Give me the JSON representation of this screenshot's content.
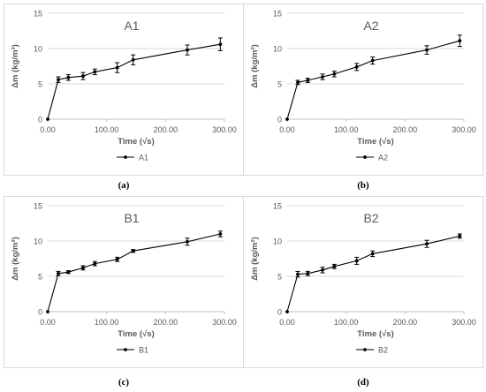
{
  "chart_data": [
    {
      "type": "line",
      "panel": "a",
      "title": "A1",
      "xlabel": "Time (√s)",
      "ylabel": "Δm (kg/m²)",
      "xlim": [
        0,
        300
      ],
      "ylim": [
        0,
        15
      ],
      "xticks": [
        "0.00",
        "100.00",
        "200.00",
        "300.00"
      ],
      "yticks": [
        "0",
        "5",
        "10",
        "15"
      ],
      "grid": true,
      "legend": "bottom",
      "series": [
        {
          "name": "A1",
          "x": [
            0,
            18,
            35,
            60,
            80,
            118,
            145,
            237,
            293
          ],
          "y": [
            0,
            5.6,
            5.9,
            6.1,
            6.7,
            7.3,
            8.4,
            9.8,
            10.6
          ],
          "err": [
            0,
            0.4,
            0.4,
            0.5,
            0.4,
            0.7,
            0.7,
            0.7,
            0.9
          ]
        }
      ]
    },
    {
      "type": "line",
      "panel": "b",
      "title": "A2",
      "xlabel": "Time (√s)",
      "ylabel": "Δm (kg/m²)",
      "xlim": [
        0,
        300
      ],
      "ylim": [
        0,
        15
      ],
      "xticks": [
        "0.00",
        "100.00",
        "200.00",
        "300.00"
      ],
      "yticks": [
        "0",
        "5",
        "10",
        "15"
      ],
      "grid": true,
      "legend": "bottom",
      "series": [
        {
          "name": "A2",
          "x": [
            0,
            18,
            35,
            60,
            80,
            118,
            145,
            237,
            293
          ],
          "y": [
            0,
            5.2,
            5.5,
            6.0,
            6.4,
            7.4,
            8.3,
            9.8,
            11.1
          ],
          "err": [
            0,
            0.3,
            0.3,
            0.4,
            0.4,
            0.5,
            0.5,
            0.6,
            0.8
          ]
        }
      ]
    },
    {
      "type": "line",
      "panel": "c",
      "title": "B1",
      "xlabel": "Time (√s)",
      "ylabel": "Δm (kg/m²)",
      "xlim": [
        0,
        300
      ],
      "ylim": [
        0,
        15
      ],
      "xticks": [
        "0.00",
        "100.00",
        "200.00",
        "300.00"
      ],
      "yticks": [
        "0",
        "5",
        "10",
        "15"
      ],
      "grid": true,
      "legend": "bottom",
      "series": [
        {
          "name": "B1",
          "x": [
            0,
            18,
            35,
            60,
            80,
            118,
            145,
            237,
            293
          ],
          "y": [
            0,
            5.4,
            5.6,
            6.2,
            6.8,
            7.4,
            8.6,
            9.9,
            11.0
          ],
          "err": [
            0,
            0.3,
            0.2,
            0.3,
            0.3,
            0.3,
            0.2,
            0.5,
            0.4
          ]
        }
      ]
    },
    {
      "type": "line",
      "panel": "d",
      "title": "B2",
      "xlabel": "Time (√s)",
      "ylabel": "Δm (kg/m²)",
      "xlim": [
        0,
        300
      ],
      "ylim": [
        0,
        15
      ],
      "xticks": [
        "0.00",
        "100.00",
        "200.00",
        "300.00"
      ],
      "yticks": [
        "0",
        "5",
        "10",
        "15"
      ],
      "grid": true,
      "legend": "bottom",
      "series": [
        {
          "name": "B2",
          "x": [
            0,
            18,
            35,
            60,
            80,
            118,
            145,
            237,
            293
          ],
          "y": [
            0,
            5.3,
            5.4,
            5.9,
            6.4,
            7.2,
            8.2,
            9.6,
            10.7
          ],
          "err": [
            0,
            0.4,
            0.3,
            0.4,
            0.3,
            0.5,
            0.4,
            0.5,
            0.3
          ]
        }
      ]
    }
  ],
  "captions": [
    "(a)",
    "(b)",
    "(c)",
    "(d)"
  ],
  "colors": {
    "line": "#000000",
    "grid": "#d9d9d9",
    "axis": "#bfbfbf",
    "text": "#595959"
  }
}
